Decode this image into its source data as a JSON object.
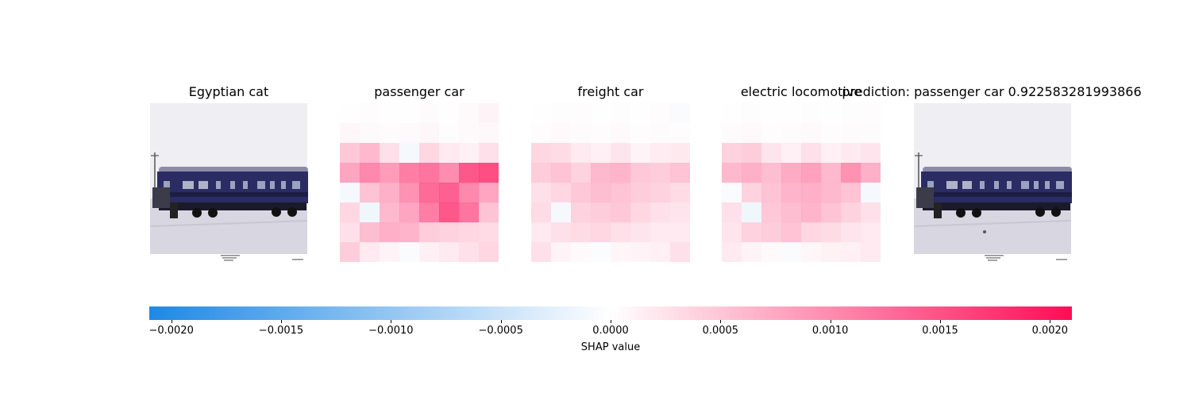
{
  "chart_data": {
    "type": "heatmap",
    "panels": [
      {
        "title": "Egyptian cat",
        "kind": "image"
      },
      {
        "title": "passenger car",
        "kind": "shap"
      },
      {
        "title": "freight car",
        "kind": "shap"
      },
      {
        "title": "electric locomotive",
        "kind": "shap"
      }
    ],
    "prediction_title": "prediction: passenger car 0.922583281993866",
    "colorbar": {
      "label": "SHAP value",
      "range": [
        -0.0021,
        0.0021
      ],
      "ticks": [
        "−0.0020",
        "−0.0015",
        "−0.0010",
        "−0.0005",
        "0.0000",
        "0.0005",
        "0.0010",
        "0.0015",
        "0.0020"
      ],
      "tick_values": [
        -0.002,
        -0.0015,
        -0.001,
        -0.0005,
        0,
        0.0005,
        0.001,
        0.0015,
        0.002
      ],
      "negative_color": "#1e88e5",
      "positive_color": "#ff0d57"
    },
    "grid": {
      "rows": 8,
      "cols": 8
    },
    "shap_values": {
      "passenger car": [
        [
          0.0,
          2e-05,
          0.0,
          0.0,
          3e-05,
          0.0,
          5e-05,
          0.0001
        ],
        [
          8e-05,
          5e-05,
          3e-05,
          4e-05,
          7e-05,
          2e-05,
          4e-05,
          6e-05
        ],
        [
          0.00055,
          0.0007,
          0.0003,
          -0.0001,
          0.0004,
          0.0002,
          0.00015,
          0.0003
        ],
        [
          0.0009,
          0.0012,
          0.001,
          0.0013,
          0.0014,
          0.00115,
          0.0017,
          0.0018
        ],
        [
          -0.0001,
          0.0006,
          0.0008,
          0.0011,
          0.0015,
          0.0016,
          0.0012,
          0.0009
        ],
        [
          0.0004,
          -0.00015,
          0.0007,
          0.0009,
          0.0013,
          0.0017,
          0.0014,
          0.0006
        ],
        [
          0.0003,
          0.00065,
          0.0008,
          0.00075,
          0.0005,
          0.00045,
          0.0004,
          0.00035
        ],
        [
          0.0005,
          0.0002,
          0.0001,
          -5e-05,
          0.00015,
          0.0002,
          0.0003,
          0.0004
        ]
      ],
      "freight car": [
        [
          0.0,
          1e-05,
          2e-05,
          0.0,
          1e-05,
          0.0,
          2e-05,
          -5e-05
        ],
        [
          2e-05,
          4e-05,
          3e-05,
          2e-05,
          4e-05,
          1e-05,
          3e-05,
          2e-05
        ],
        [
          0.0004,
          0.00035,
          0.0002,
          0.00015,
          0.00025,
          0.0001,
          0.00018,
          0.00022
        ],
        [
          0.0005,
          0.0006,
          0.00045,
          0.0007,
          0.00075,
          0.00055,
          0.0005,
          0.0006
        ],
        [
          0.0003,
          0.0004,
          0.00055,
          0.00065,
          0.0006,
          0.0005,
          0.00045,
          0.00035
        ],
        [
          0.00035,
          -0.0001,
          0.00045,
          0.0005,
          0.00055,
          0.0004,
          0.0003,
          0.00025
        ],
        [
          0.0002,
          0.0003,
          0.00035,
          0.0004,
          0.0003,
          0.00025,
          0.0002,
          0.0002
        ],
        [
          0.0003,
          0.0001,
          5e-05,
          -3e-05,
          8e-05,
          0.0001,
          0.00015,
          0.0003
        ]
      ],
      "electric locomotive": [
        [
          0.0,
          1e-05,
          0.0,
          0.0,
          1e-05,
          0.0,
          1e-05,
          2e-05
        ],
        [
          3e-05,
          4e-05,
          2e-05,
          3e-05,
          4e-05,
          2e-05,
          3e-05,
          3e-05
        ],
        [
          0.00045,
          0.0005,
          0.00025,
          0.00015,
          0.0003,
          0.00015,
          0.0002,
          0.00025
        ],
        [
          0.0007,
          0.0008,
          0.00065,
          0.00085,
          0.00095,
          0.0007,
          0.0011,
          0.0008
        ],
        [
          -5e-05,
          0.00045,
          0.0006,
          0.00075,
          0.0008,
          0.0007,
          0.0006,
          -0.0001
        ],
        [
          0.0003,
          -0.00015,
          0.00055,
          0.00065,
          0.00075,
          0.0006,
          0.00045,
          0.0003
        ],
        [
          0.00025,
          0.00045,
          0.0005,
          0.0006,
          0.0004,
          0.00035,
          0.00025,
          0.0002
        ],
        [
          0.0002,
          0.0001,
          5e-05,
          -5e-05,
          8e-05,
          0.00012,
          0.00015,
          0.0002
        ]
      ]
    }
  }
}
